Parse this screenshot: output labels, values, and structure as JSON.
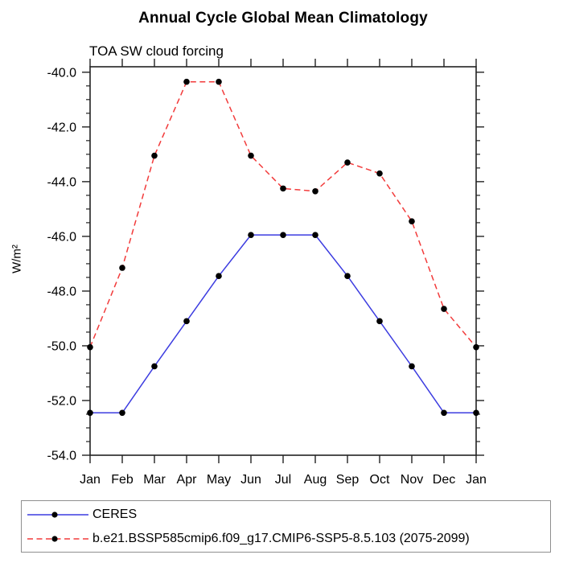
{
  "chart_data": {
    "type": "line",
    "title": "Annual Cycle Global Mean Climatology",
    "subtitle": "TOA SW cloud forcing",
    "ylabel": "W/m²",
    "categories": [
      "Jan",
      "Feb",
      "Mar",
      "Apr",
      "May",
      "Jun",
      "Jul",
      "Aug",
      "Sep",
      "Oct",
      "Nov",
      "Dec",
      "Jan"
    ],
    "ylim": [
      -54.0,
      -39.8
    ],
    "yticks": [
      -40,
      -42,
      -44,
      -46,
      -48,
      -50,
      -52,
      -54
    ],
    "ytick_labels": [
      "-40.0",
      "-42.0",
      "-44.0",
      "-46.0",
      "-48.0",
      "-50.0",
      "-52.0",
      "-54.0"
    ],
    "minor_tick_step": 0.5,
    "grid": false,
    "legend_position": "bottom",
    "axis_color": "#222222",
    "marker": "filled-circle",
    "marker_color": "#000000",
    "series": [
      {
        "name": "CERES",
        "color": "#3c3ce0",
        "line_style": "solid",
        "values": [
          -52.45,
          -52.45,
          -50.75,
          -49.1,
          -47.45,
          -45.95,
          -45.95,
          -45.95,
          -47.45,
          -49.1,
          -50.75,
          -52.45,
          -52.45
        ]
      },
      {
        "name": "b.e21.BSSP585cmip6.f09_g17.CMIP6-SSP5-8.5.103 (2075-2099)",
        "color": "#f23b3b",
        "line_style": "dashed",
        "values": [
          -50.05,
          -47.15,
          -43.05,
          -40.35,
          -40.35,
          -43.05,
          -44.25,
          -44.35,
          -43.3,
          -43.7,
          -45.45,
          -48.65,
          -50.05
        ]
      }
    ]
  }
}
